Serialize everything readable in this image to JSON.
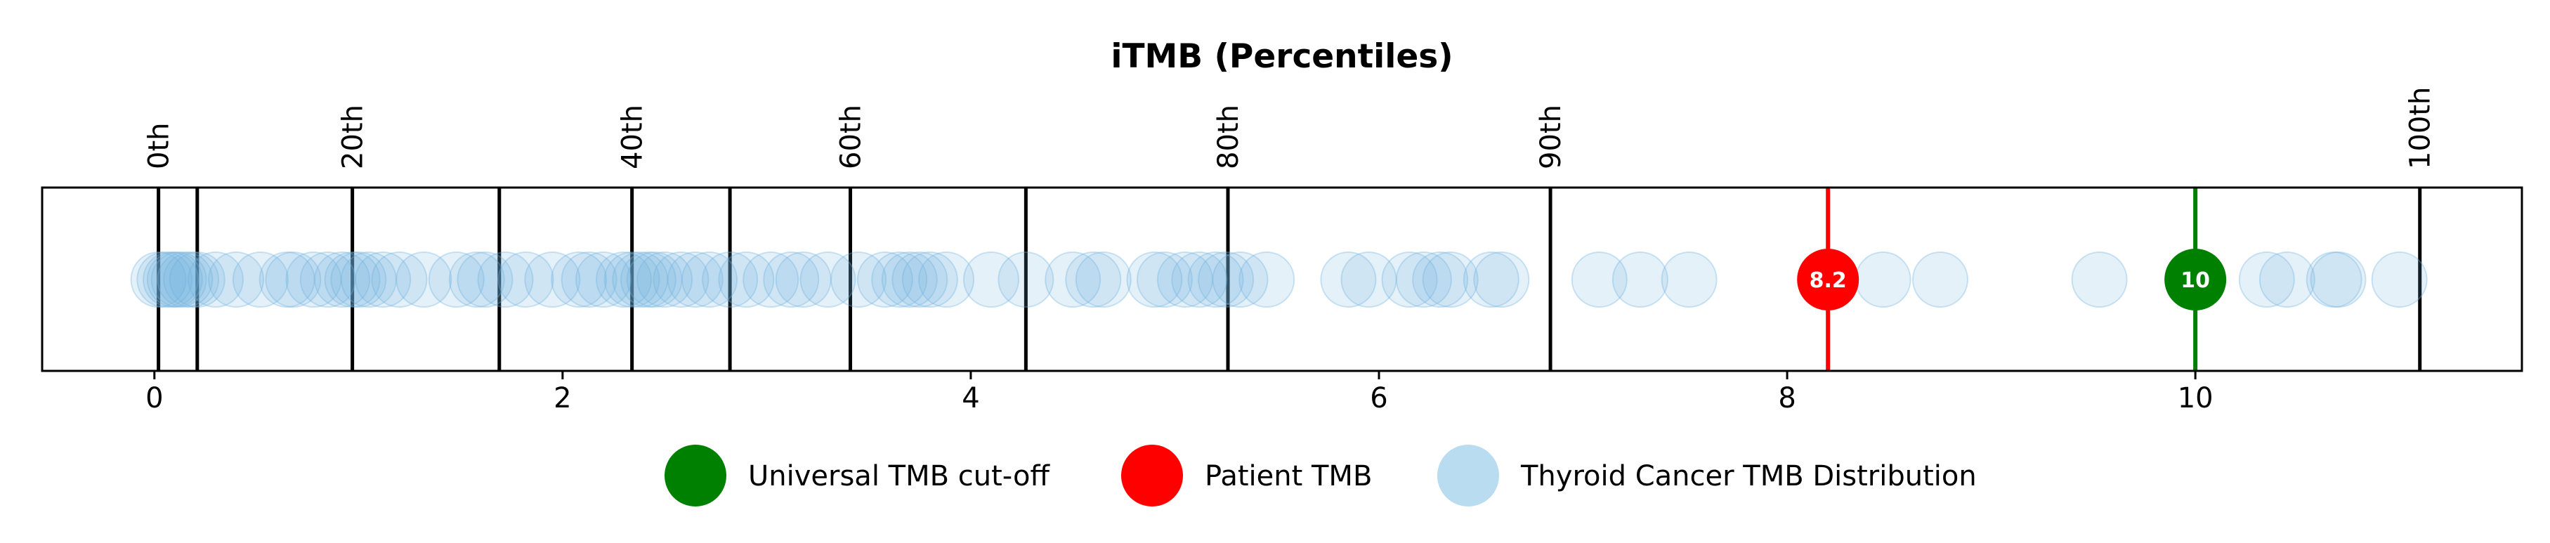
{
  "chart_data": {
    "type": "scatter",
    "title": "iTMB (Percentiles)",
    "xlabel": "",
    "ylabel": "",
    "xlim": [
      -0.55,
      11.6
    ],
    "x_ticks": [
      0,
      2,
      4,
      6,
      8,
      10
    ],
    "grid": false,
    "percentile_lines": [
      {
        "label": "0th",
        "x": 0.02
      },
      {
        "label": "",
        "x": 0.21
      },
      {
        "label": "20th",
        "x": 0.97
      },
      {
        "label": "",
        "x": 1.69
      },
      {
        "label": "40th",
        "x": 2.34
      },
      {
        "label": "",
        "x": 2.82
      },
      {
        "label": "60th",
        "x": 3.41
      },
      {
        "label": "",
        "x": 4.27
      },
      {
        "label": "80th",
        "x": 5.26
      },
      {
        "label": "90th",
        "x": 6.84
      },
      {
        "label": "100th",
        "x": 11.1
      }
    ],
    "distribution": {
      "name": "Thyroid Cancer TMB Distribution",
      "color": "#6fb3e0",
      "x": [
        0.02,
        0.05,
        0.08,
        0.1,
        0.12,
        0.15,
        0.18,
        0.21,
        0.3,
        0.4,
        0.52,
        0.65,
        0.68,
        0.78,
        0.85,
        0.92,
        0.97,
        1.0,
        1.05,
        1.12,
        1.2,
        1.32,
        1.48,
        1.58,
        1.62,
        1.72,
        1.82,
        1.95,
        2.08,
        2.13,
        2.2,
        2.3,
        2.34,
        2.38,
        2.42,
        2.45,
        2.5,
        2.58,
        2.65,
        2.72,
        2.82,
        2.9,
        3.02,
        3.12,
        3.18,
        3.3,
        3.45,
        3.58,
        3.65,
        3.7,
        3.75,
        3.8,
        3.88,
        4.1,
        4.27,
        4.5,
        4.6,
        4.65,
        4.9,
        4.95,
        5.05,
        5.12,
        5.2,
        5.25,
        5.32,
        5.45,
        5.85,
        5.95,
        6.15,
        6.22,
        6.3,
        6.35,
        6.55,
        6.6,
        7.08,
        7.28,
        7.52,
        8.47,
        8.75,
        9.53,
        10.35,
        10.45,
        10.68,
        10.7,
        11.0
      ]
    },
    "markers": [
      {
        "name": "Patient TMB",
        "x": 8.2,
        "label": "8.2",
        "color": "#ff0000"
      },
      {
        "name": "Universal TMB cut-off",
        "x": 10,
        "label": "10",
        "color": "#008000"
      }
    ],
    "legend": {
      "placement": "bottom-center",
      "entries": [
        {
          "name": "Universal TMB cut-off",
          "color": "#008000"
        },
        {
          "name": "Patient TMB",
          "color": "#ff0000"
        },
        {
          "name": "Thyroid Cancer TMB Distribution",
          "color": "#b9dcf0"
        }
      ]
    }
  }
}
